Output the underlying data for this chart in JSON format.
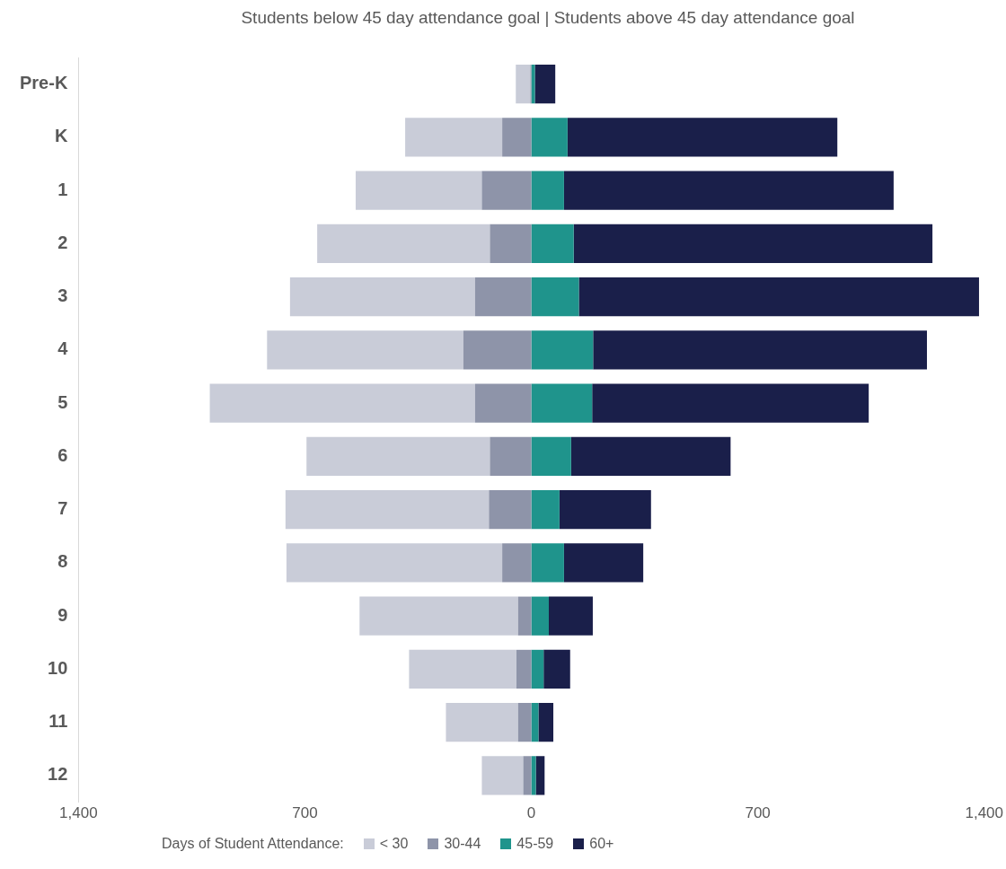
{
  "chart_data": {
    "type": "bar",
    "orientation": "horizontal",
    "stacked": true,
    "title": "Students below 45 day attendance goal | Students above 45 day attendance goal",
    "legend_title": "Days of Student Attendance:",
    "legend": "bottom",
    "grid": false,
    "categories": [
      "Pre-K",
      "K",
      "1",
      "2",
      "3",
      "4",
      "5",
      "6",
      "7",
      "8",
      "9",
      "10",
      "11",
      "12"
    ],
    "xlim": [
      -1400,
      1400
    ],
    "xticks": [
      {
        "value": -1400,
        "label": "1,400"
      },
      {
        "value": -700,
        "label": "700"
      },
      0,
      700,
      {
        "value": 1400,
        "label": "1,400"
      }
    ],
    "series": [
      {
        "name": "30-44",
        "color": "#8e94a9",
        "values": [
          -3,
          -90,
          -153,
          -128,
          -174,
          -210,
          -174,
          -128,
          -131,
          -90,
          -41,
          -46,
          -41,
          -25
        ]
      },
      {
        "name": "< 30",
        "color": "#c9ccd8",
        "values": [
          -45,
          -300,
          -390,
          -534,
          -572,
          -607,
          -820,
          -567,
          -629,
          -667,
          -490,
          -332,
          -223,
          -128
        ]
      },
      {
        "name": "45-59",
        "color": "#1f948c",
        "values": [
          11,
          112,
          101,
          131,
          147,
          191,
          188,
          123,
          87,
          101,
          54,
          38,
          22,
          14
        ]
      },
      {
        "name": "60+",
        "color": "#1a1f4a",
        "values": [
          63,
          834,
          1019,
          1109,
          1237,
          1032,
          855,
          493,
          283,
          245,
          136,
          82,
          46,
          27
        ]
      }
    ]
  }
}
